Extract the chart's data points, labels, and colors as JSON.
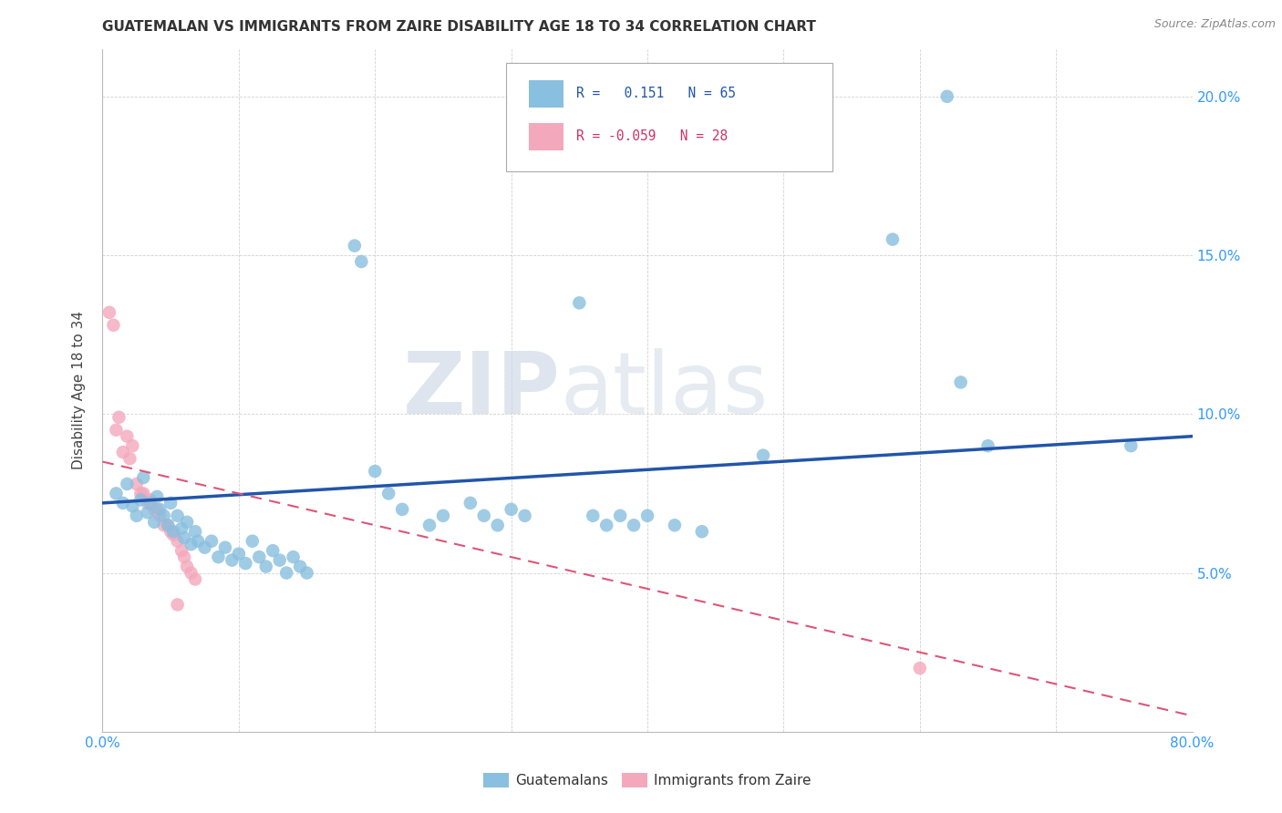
{
  "title": "GUATEMALAN VS IMMIGRANTS FROM ZAIRE DISABILITY AGE 18 TO 34 CORRELATION CHART",
  "source": "Source: ZipAtlas.com",
  "ylabel": "Disability Age 18 to 34",
  "xlim": [
    0,
    0.8
  ],
  "ylim": [
    0,
    0.215
  ],
  "blue_R": 0.151,
  "blue_N": 65,
  "pink_R": -0.059,
  "pink_N": 28,
  "blue_color": "#89bfdf",
  "pink_color": "#f4a8bc",
  "blue_line_color": "#2255aa",
  "pink_line_color": "#dd5577",
  "watermark_zip": "ZIP",
  "watermark_atlas": "atlas",
  "legend_label_blue": "Guatemalans",
  "legend_label_pink": "Immigrants from Zaire",
  "blue_line_x0": 0.0,
  "blue_line_y0": 0.072,
  "blue_line_x1": 0.8,
  "blue_line_y1": 0.093,
  "pink_line_x0": 0.0,
  "pink_line_y0": 0.085,
  "pink_line_x1": 0.8,
  "pink_line_y1": 0.005
}
